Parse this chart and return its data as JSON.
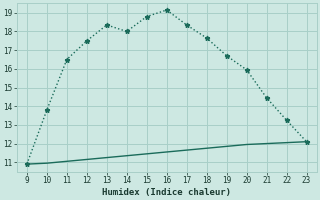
{
  "xlabel": "Humidex (Indice chaleur)",
  "x_values": [
    9,
    10,
    11,
    12,
    13,
    14,
    15,
    16,
    17,
    18,
    19,
    20,
    21,
    22,
    23
  ],
  "y_main": [
    10.9,
    13.8,
    16.5,
    17.5,
    18.35,
    18.0,
    18.8,
    19.15,
    18.35,
    17.65,
    16.7,
    15.95,
    14.45,
    13.25,
    12.1
  ],
  "y_second": [
    10.9,
    10.95,
    11.05,
    11.15,
    11.25,
    11.35,
    11.45,
    11.55,
    11.65,
    11.75,
    11.85,
    11.95,
    12.0,
    12.05,
    12.1
  ],
  "xlim": [
    8.5,
    23.5
  ],
  "ylim": [
    10.5,
    19.5
  ],
  "xticks": [
    9,
    10,
    11,
    12,
    13,
    14,
    15,
    16,
    17,
    18,
    19,
    20,
    21,
    22,
    23
  ],
  "yticks": [
    11,
    12,
    13,
    14,
    15,
    16,
    17,
    18,
    19
  ],
  "line_color": "#1a6b5a",
  "bg_color": "#cde8e2",
  "grid_color": "#a8cfc8",
  "font_color": "#1a3a30",
  "font_family": "monospace"
}
